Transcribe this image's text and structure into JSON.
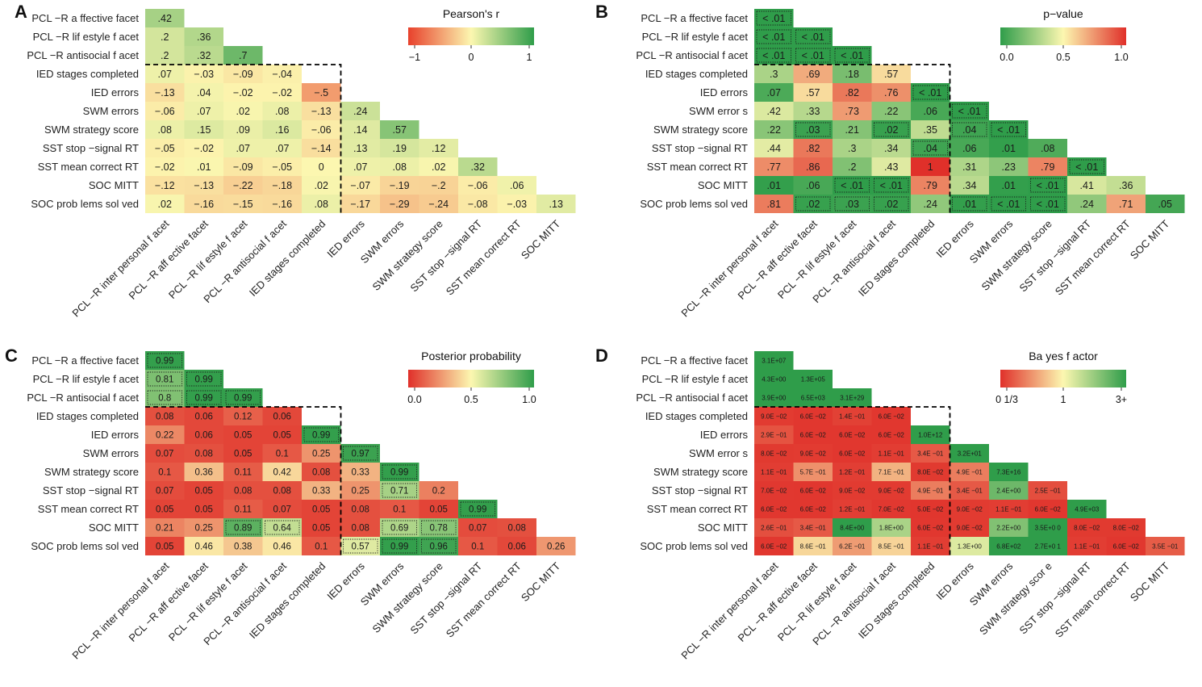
{
  "figure": {
    "panel_letters": [
      "A",
      "B",
      "C",
      "D"
    ]
  },
  "chart_data": [
    {
      "type": "heatmap",
      "panel": "A",
      "title": "Pearson's  r",
      "legend": {
        "ticks": [
          "−1",
          "0",
          "1"
        ],
        "scale": "diverging",
        "colors": [
          "#e8412c",
          "#fcf7b0",
          "#2f9d4a"
        ]
      },
      "row_labels": [
        "PCL  −R a ffective facet",
        "PCL  −R lif estyle f acet",
        "PCL  −R antisocial f  acet",
        "IED stages completed",
        "IED errors",
        "SWM errors",
        "SWM strategy score",
        "SST stop   −signal  RT",
        "SST mean correct    RT",
        "SOC MITT",
        "SOC prob  lems sol  ved"
      ],
      "col_labels": [
        "PCL  −R inter personal f acet",
        "PCL  −R aff ective facet",
        "PCL  −R lif estyle f acet",
        "PCL  −R antisocial f  acet",
        "IED stages completed",
        "IED errors",
        "SWM errors",
        "SWM strategy   score",
        "SST stop   −signal  RT",
        "SST mean correct     RT",
        "SOC MITT"
      ],
      "values": [
        [
          ".42"
        ],
        [
          ".2",
          ".36"
        ],
        [
          ".2",
          ".32",
          ".7"
        ],
        [
          ".07",
          "−.03",
          "−.09",
          "−.04"
        ],
        [
          "−.13",
          ".04",
          "−.02",
          "−.02",
          "−.5"
        ],
        [
          "−.06",
          ".07",
          ".02",
          ".08",
          "−.13",
          ".24"
        ],
        [
          ".08",
          ".15",
          ".09",
          ".16",
          "−.06",
          ".14",
          ".57"
        ],
        [
          "−.05",
          "−.02",
          ".07",
          ".07",
          "−.14",
          ".13",
          ".19",
          ".12"
        ],
        [
          "−.02",
          ".01",
          "−.09",
          "−.05",
          "0",
          ".07",
          ".08",
          ".02",
          ".32"
        ],
        [
          "−.12",
          "−.13",
          "−.22",
          "−.18",
          ".02",
          "−.07",
          "−.19",
          "−.2",
          "−.06",
          ".06"
        ],
        [
          ".02",
          "−.16",
          "−.15",
          "−.16",
          ".08",
          "−.17",
          "−.29",
          "−.24",
          "−.08",
          "−.03",
          ".13"
        ]
      ],
      "color_values": [
        [
          0.42
        ],
        [
          0.2,
          0.36
        ],
        [
          0.2,
          0.32,
          0.7
        ],
        [
          0.07,
          -0.03,
          -0.09,
          -0.04
        ],
        [
          -0.13,
          0.04,
          -0.02,
          -0.02,
          -0.5
        ],
        [
          -0.06,
          0.07,
          0.02,
          0.08,
          -0.13,
          0.24
        ],
        [
          0.08,
          0.15,
          0.09,
          0.16,
          -0.06,
          0.14,
          0.57
        ],
        [
          -0.05,
          -0.02,
          0.07,
          0.07,
          -0.14,
          0.13,
          0.19,
          0.12
        ],
        [
          -0.02,
          0.01,
          -0.09,
          -0.05,
          0,
          0.07,
          0.08,
          0.02,
          0.32
        ],
        [
          -0.12,
          -0.13,
          -0.22,
          -0.18,
          0.02,
          -0.07,
          -0.19,
          -0.2,
          -0.06,
          0.06
        ],
        [
          0.02,
          -0.16,
          -0.15,
          -0.16,
          0.08,
          -0.17,
          -0.29,
          -0.24,
          -0.08,
          -0.03,
          0.13
        ]
      ],
      "dotted": [],
      "block_split": {
        "rows": 3,
        "cols": 4
      }
    },
    {
      "type": "heatmap",
      "panel": "B",
      "title": "p−value",
      "legend": {
        "ticks": [
          "0.0",
          "0.5",
          "1.0"
        ],
        "scale": "sequential",
        "colors": [
          "#2f9d4a",
          "#fcf7b0",
          "#e0302a"
        ]
      },
      "row_labels": [
        "PCL  −R a ffective facet",
        "PCL  −R lif estyle f acet",
        "PCL  −R antisocial f  acet",
        "IED stages completed",
        "IED errors",
        "SWM error  s",
        "SWM strategy score",
        "SST stop   −signal  RT",
        "SST mean correct     RT",
        "SOC MITT",
        "SOC prob  lems sol  ved"
      ],
      "col_labels": [
        "PCL  −R inter personal f acet",
        "PCL  −R aff ective facet",
        "PCL  −R lif estyle f acet",
        "PCL  −R antisocial f  acet",
        "IED stages completed",
        "IED errors",
        "SWM errors",
        "SWM strategy    score",
        "SST stop   −signal  RT",
        "SST mean correct     RT",
        "SOC MITT"
      ],
      "values": [
        [
          "< .01"
        ],
        [
          "< .01",
          "< .01"
        ],
        [
          "< .01",
          "< .01",
          "< .01"
        ],
        [
          ".3",
          ".69",
          ".18",
          ".57"
        ],
        [
          ".07",
          ".57",
          ".82",
          ".76",
          "< .01"
        ],
        [
          ".42",
          ".33",
          ".73",
          ".22",
          ".06",
          "< .01"
        ],
        [
          ".22",
          ".03",
          ".21",
          ".02",
          ".35",
          ".04",
          "< .01"
        ],
        [
          ".44",
          ".82",
          ".3",
          ".34",
          ".04",
          ".06",
          ".01",
          ".08"
        ],
        [
          ".77",
          ".86",
          ".2",
          ".43",
          "1",
          ".31",
          ".23",
          ".79",
          "< .01"
        ],
        [
          ".01",
          ".06",
          "< .01",
          "< .01",
          ".79",
          ".34",
          ".01",
          "< .01",
          ".41",
          ".36"
        ],
        [
          ".81",
          ".02",
          ".03",
          ".02",
          ".24",
          ".01",
          "< .01",
          "< .01",
          ".24",
          ".71",
          ".05"
        ]
      ],
      "color_values": [
        [
          0.001
        ],
        [
          0.001,
          0.001
        ],
        [
          0.001,
          0.001,
          0.001
        ],
        [
          0.3,
          0.69,
          0.18,
          0.57
        ],
        [
          0.07,
          0.57,
          0.82,
          0.76,
          0.001
        ],
        [
          0.42,
          0.33,
          0.73,
          0.22,
          0.06,
          0.001
        ],
        [
          0.22,
          0.03,
          0.21,
          0.02,
          0.35,
          0.04,
          0.001
        ],
        [
          0.44,
          0.82,
          0.3,
          0.34,
          0.04,
          0.06,
          0.01,
          0.08
        ],
        [
          0.77,
          0.86,
          0.2,
          0.43,
          1,
          0.31,
          0.23,
          0.79,
          0.001
        ],
        [
          0.01,
          0.06,
          0.001,
          0.001,
          0.79,
          0.34,
          0.01,
          0.001,
          0.41,
          0.36
        ],
        [
          0.81,
          0.02,
          0.03,
          0.02,
          0.24,
          0.01,
          0.001,
          0.001,
          0.24,
          0.71,
          0.05
        ]
      ],
      "dotted": [
        [
          0,
          0
        ],
        [
          1,
          0
        ],
        [
          1,
          1
        ],
        [
          2,
          0
        ],
        [
          2,
          1
        ],
        [
          2,
          2
        ],
        [
          4,
          4
        ],
        [
          5,
          5
        ],
        [
          6,
          1
        ],
        [
          6,
          3
        ],
        [
          6,
          5
        ],
        [
          6,
          6
        ],
        [
          7,
          4
        ],
        [
          8,
          8
        ],
        [
          9,
          2
        ],
        [
          9,
          3
        ],
        [
          9,
          7
        ],
        [
          10,
          1
        ],
        [
          10,
          2
        ],
        [
          10,
          3
        ],
        [
          10,
          5
        ],
        [
          10,
          6
        ],
        [
          10,
          7
        ]
      ],
      "block_split": {
        "rows": 3,
        "cols": 4
      }
    },
    {
      "type": "heatmap",
      "panel": "C",
      "title": "Posterior probability",
      "legend": {
        "ticks": [
          "0.0",
          "0.5",
          "1.0"
        ],
        "scale": "sequential",
        "colors": [
          "#e0302a",
          "#fcf7b0",
          "#2f9d4a"
        ]
      },
      "row_labels": [
        "PCL  −R a ffective facet",
        "PCL  −R lif estyle f acet",
        "PCL  −R antisocial f  acet",
        "IED stages completed",
        "IED errors",
        "SWM errors",
        "SWM strategy score",
        "SST stop   −signal  RT",
        "SST mean correct     RT",
        "SOC MITT",
        "SOC prob  lems sol  ved"
      ],
      "col_labels": [
        "PCL  −R inter personal f acet",
        "PCL  −R aff ective facet",
        "PCL  −R lif estyle f acet",
        "PCL  −R antisocial f  acet",
        "IED stages completed",
        "IED errors",
        "SWM errors",
        "SWM strategy    score",
        "SST stop   −signal  RT",
        "SST mean correct     RT",
        "SOC MITT"
      ],
      "values": [
        [
          "0.99"
        ],
        [
          "0.81",
          "0.99"
        ],
        [
          "0.8",
          "0.99",
          "0.99"
        ],
        [
          "0.08",
          "0.06",
          "0.12",
          "0.06"
        ],
        [
          "0.22",
          "0.06",
          "0.05",
          "0.05",
          "0.99"
        ],
        [
          "0.07",
          "0.08",
          "0.05",
          "0.1",
          "0.25",
          "0.97"
        ],
        [
          "0.1",
          "0.36",
          "0.11",
          "0.42",
          "0.08",
          "0.33",
          "0.99"
        ],
        [
          "0.07",
          "0.05",
          "0.08",
          "0.08",
          "0.33",
          "0.25",
          "0.71",
          "0.2"
        ],
        [
          "0.05",
          "0.05",
          "0.11",
          "0.07",
          "0.05",
          "0.08",
          "0.1",
          "0.05",
          "0.99"
        ],
        [
          "0.21",
          "0.25",
          "0.89",
          "0.64",
          "0.05",
          "0.08",
          "0.69",
          "0.78",
          "0.07",
          "0.08"
        ],
        [
          "0.05",
          "0.46",
          "0.38",
          "0.46",
          "0.1",
          "0.57",
          "0.99",
          "0.96",
          "0.1",
          "0.06",
          "0.26"
        ]
      ],
      "color_values": [
        [
          0.99
        ],
        [
          0.81,
          0.99
        ],
        [
          0.8,
          0.99,
          0.99
        ],
        [
          0.08,
          0.06,
          0.12,
          0.06
        ],
        [
          0.22,
          0.06,
          0.05,
          0.05,
          0.99
        ],
        [
          0.07,
          0.08,
          0.05,
          0.1,
          0.25,
          0.97
        ],
        [
          0.1,
          0.36,
          0.11,
          0.42,
          0.08,
          0.33,
          0.99
        ],
        [
          0.07,
          0.05,
          0.08,
          0.08,
          0.33,
          0.25,
          0.71,
          0.2
        ],
        [
          0.05,
          0.05,
          0.11,
          0.07,
          0.05,
          0.08,
          0.1,
          0.05,
          0.99
        ],
        [
          0.21,
          0.25,
          0.89,
          0.64,
          0.05,
          0.08,
          0.69,
          0.78,
          0.07,
          0.08
        ],
        [
          0.05,
          0.46,
          0.38,
          0.46,
          0.1,
          0.57,
          0.99,
          0.96,
          0.1,
          0.06,
          0.26
        ]
      ],
      "dotted": [
        [
          0,
          0
        ],
        [
          1,
          0
        ],
        [
          1,
          1
        ],
        [
          2,
          0
        ],
        [
          2,
          1
        ],
        [
          2,
          2
        ],
        [
          4,
          4
        ],
        [
          5,
          5
        ],
        [
          6,
          6
        ],
        [
          7,
          6
        ],
        [
          8,
          8
        ],
        [
          9,
          2
        ],
        [
          9,
          3
        ],
        [
          9,
          6
        ],
        [
          9,
          7
        ],
        [
          10,
          5
        ],
        [
          10,
          6
        ],
        [
          10,
          7
        ]
      ],
      "block_split": {
        "rows": 3,
        "cols": 4
      }
    },
    {
      "type": "heatmap",
      "panel": "D",
      "title": "Ba yes f actor",
      "legend": {
        "ticks": [
          "0 1/3",
          "1",
          "3+"
        ],
        "scale": "bayes",
        "colors": [
          "#e0302a",
          "#fcf7b0",
          "#2f9d4a"
        ]
      },
      "row_labels": [
        "PCL  −R a ffective facet",
        "PCL  −R lif estyle f acet",
        "PCL  −R antisocial f  acet",
        "IED stages completed",
        "IED errors",
        "SWM error  s",
        "SWM strategy score",
        "SST stop   −signal  RT",
        "SST mean correct     RT",
        "SOC MITT",
        "SOC prob  lems sol  ved"
      ],
      "col_labels": [
        "PCL  −R inter personal f acet",
        "PCL  −R aff ective facet",
        "PCL  −R lif estyle f acet",
        "PCL  −R antisocial f  acet",
        "IED stages completed",
        "IED errors",
        "SWM errors",
        "SWM strategy    scor e",
        "SST stop   −signal  RT",
        "SST mean correct     RT",
        "SOC MITT"
      ],
      "values": [
        [
          "3.1E+07"
        ],
        [
          "4.3E+00",
          "1.3E+05"
        ],
        [
          "3.9E+00",
          "6.5E+03",
          "3.1E+29"
        ],
        [
          "9.0E −02",
          "6.0E −02",
          "1.4E −01",
          "6.0E −02"
        ],
        [
          "2.9E −01",
          "6.0E −02",
          "6.0E −02",
          "6.0E −02",
          "1.0E+12"
        ],
        [
          "8.0E −02",
          "9.0E −02",
          "6.0E −02",
          "1.1E −01",
          "3.4E −01",
          "3.2E+01"
        ],
        [
          "1.1E −01",
          "5.7E −01",
          "1.2E −01",
          "7.1E −01",
          "8.0E −02",
          "4.9E −01",
          "7.3E+16"
        ],
        [
          "7.0E −02",
          "6.0E −02",
          "9.0E −02",
          "9.0E −02",
          "4.9E −01",
          "3.4E −01",
          "2.4E+00",
          "2.5E −01"
        ],
        [
          "6.0E −02",
          "6.0E −02",
          "1.2E −01",
          "7.0E −02",
          "5.0E −02",
          "9.0E −02",
          "1.1E −01",
          "6.0E −02",
          "4.9E+03"
        ],
        [
          "2.6E −01",
          "3.4E −01",
          "8.4E+00",
          "1.8E+00",
          "6.0E −02",
          "9.0E −02",
          "2.2E+00",
          "3.5E+0 0",
          "8.0E −02",
          "8.0E −02"
        ],
        [
          "6.0E −02",
          "8.6E −01",
          "6.2E −01",
          "8.5E −01",
          "1.1E −01",
          "1.3E+00",
          "6.8E+02",
          "2.7E+0 1",
          "1.1E −01",
          "6.0E −02",
          "3.5E −01"
        ]
      ],
      "color_values": [
        [
          31000000.0
        ],
        [
          4.3,
          130000.0
        ],
        [
          3.9,
          6500.0,
          3.1e+29
        ],
        [
          0.09,
          0.06,
          0.14,
          0.06
        ],
        [
          0.29,
          0.06,
          0.06,
          0.06,
          1000000000000.0
        ],
        [
          0.08,
          0.09,
          0.06,
          0.11,
          0.34,
          32
        ],
        [
          0.11,
          0.57,
          0.12,
          0.71,
          0.08,
          0.49,
          7.3e+16
        ],
        [
          0.07,
          0.06,
          0.09,
          0.09,
          0.49,
          0.34,
          2.4,
          0.25
        ],
        [
          0.06,
          0.06,
          0.12,
          0.07,
          0.05,
          0.09,
          0.11,
          0.06,
          4900.0
        ],
        [
          0.26,
          0.34,
          8.4,
          1.8,
          0.06,
          0.09,
          2.2,
          3.5,
          0.08,
          0.08
        ],
        [
          0.06,
          0.86,
          0.62,
          0.85,
          0.11,
          1.3,
          680,
          27,
          0.11,
          0.06,
          0.35
        ]
      ],
      "dotted": [],
      "block_split": {
        "rows": 3,
        "cols": 4
      }
    }
  ]
}
